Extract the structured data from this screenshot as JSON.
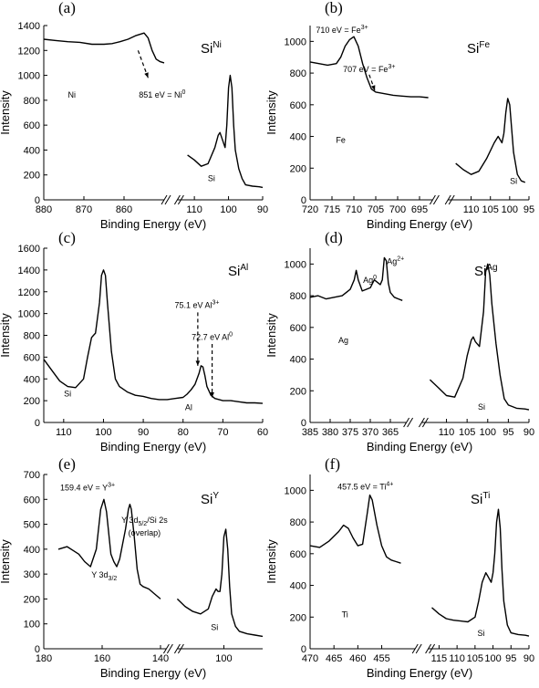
{
  "chart_data": [
    {
      "panel": "(a)",
      "title": "Si",
      "title_sup": "Ni",
      "type": "line",
      "xlabel": "Binding Energy (eV)",
      "ylabel": "Intensity",
      "ylim": [
        0,
        1400
      ],
      "yticks": [
        0,
        200,
        400,
        600,
        800,
        1000,
        1200,
        1400
      ],
      "segments": [
        {
          "xlim": [
            880,
            850
          ],
          "xticks": [
            880,
            870,
            860
          ],
          "x": [
            880,
            877,
            874,
            871,
            868,
            865,
            863,
            861,
            859,
            857,
            855,
            854,
            853,
            852,
            851,
            850
          ],
          "y": [
            1290,
            1280,
            1270,
            1265,
            1250,
            1250,
            1255,
            1270,
            1290,
            1320,
            1340,
            1300,
            1200,
            1130,
            1110,
            1100
          ]
        },
        {
          "xlim": [
            115,
            90
          ],
          "xticks": [
            110,
            100,
            90
          ],
          "x": [
            112,
            110,
            108,
            106,
            104,
            103,
            102.5,
            102,
            101,
            100.5,
            100,
            99.5,
            99,
            98.5,
            98,
            97,
            96,
            95,
            93,
            91,
            90
          ],
          "y": [
            360,
            320,
            270,
            290,
            420,
            520,
            540,
            500,
            420,
            600,
            900,
            1000,
            900,
            600,
            400,
            250,
            170,
            120,
            110,
            105,
            100
          ]
        }
      ],
      "element_labels": [
        {
          "text": "Ni",
          "x": 873,
          "y": 820
        },
        {
          "text": "Si",
          "x": 105,
          "y": 150
        }
      ],
      "annotations": [
        {
          "text": "851 eV = Ni",
          "sup": "0",
          "x": 850.5,
          "y": 820,
          "arrow_from": [
            856.5,
            1200
          ],
          "arrow_to": [
            854,
            980
          ]
        }
      ]
    },
    {
      "panel": "(b)",
      "title": "Si",
      "title_sup": "Fe",
      "type": "line",
      "xlabel": "Binding Energy (eV)",
      "ylabel": "Intensity",
      "ylim": [
        0,
        1100
      ],
      "yticks": [
        0,
        200,
        400,
        600,
        800,
        1000
      ],
      "segments": [
        {
          "xlim": [
            720,
            692
          ],
          "xticks": [
            720,
            715,
            710,
            705,
            700,
            695
          ],
          "x": [
            720,
            718,
            716,
            714,
            713,
            712,
            711,
            710,
            709,
            708,
            707,
            706,
            705,
            703,
            701,
            699,
            697,
            695,
            693
          ],
          "y": [
            870,
            860,
            850,
            860,
            900,
            970,
            1010,
            1030,
            970,
            860,
            770,
            700,
            680,
            670,
            660,
            655,
            650,
            650,
            645
          ]
        },
        {
          "xlim": [
            116,
            95
          ],
          "xticks": [
            110,
            105,
            100,
            95
          ],
          "x": [
            114,
            112,
            110,
            108,
            106,
            104,
            103,
            102.5,
            102,
            101.5,
            101,
            100.5,
            100,
            99.5,
            99,
            98,
            97,
            96
          ],
          "y": [
            230,
            190,
            160,
            180,
            260,
            360,
            400,
            380,
            360,
            420,
            550,
            640,
            600,
            450,
            300,
            160,
            120,
            110
          ]
        }
      ],
      "element_labels": [
        {
          "text": "Fe",
          "x": 713,
          "y": 360
        },
        {
          "text": "Si",
          "x": 99,
          "y": 100
        }
      ],
      "annotations": [
        {
          "text": "710 eV = Fe",
          "sup": "3+",
          "x": 712.7,
          "y": 1055
        },
        {
          "text": "707 eV = Fe",
          "sup": "3+",
          "x": 706.5,
          "y": 805,
          "arrow_from": [
            706.5,
            790
          ],
          "arrow_to": [
            705.2,
            690
          ]
        }
      ]
    },
    {
      "panel": "(c)",
      "title": "Si",
      "title_sup": "Al",
      "type": "line",
      "xlabel": "Binding Energy (eV)",
      "ylabel": "Intensity",
      "xlim": [
        115,
        60
      ],
      "xticks": [
        110,
        100,
        90,
        80,
        70,
        60
      ],
      "ylim": [
        0,
        1600
      ],
      "yticks": [
        0,
        200,
        400,
        600,
        800,
        1000,
        1200,
        1400,
        1600
      ],
      "segments": [
        {
          "xlim": [
            115,
            60
          ],
          "xticks": [
            110,
            100,
            90,
            80,
            70,
            60
          ],
          "x": [
            115,
            113,
            111,
            109,
            107,
            105,
            104,
            103,
            102.5,
            102,
            101,
            100.5,
            100,
            99.5,
            99,
            98,
            97,
            96,
            94,
            92,
            90,
            88,
            86,
            84,
            82,
            80,
            79,
            78,
            77,
            76,
            75.5,
            75,
            74.5,
            74,
            73,
            72,
            70,
            68,
            66,
            64,
            62,
            60
          ],
          "y": [
            580,
            480,
            380,
            330,
            320,
            400,
            600,
            780,
            800,
            820,
            1100,
            1350,
            1400,
            1350,
            1100,
            650,
            400,
            330,
            280,
            250,
            240,
            220,
            210,
            210,
            220,
            230,
            260,
            300,
            350,
            450,
            520,
            510,
            430,
            330,
            250,
            220,
            200,
            200,
            190,
            180,
            180,
            175
          ]
        }
      ],
      "element_labels": [
        {
          "text": "Si",
          "x": 109,
          "y": 240
        },
        {
          "text": "Al",
          "x": 78.6,
          "y": 115
        }
      ],
      "annotations": [
        {
          "text": "75.1 eV Al",
          "sup": "3+",
          "x": 76.5,
          "y": 1050,
          "arrow_from": [
            76.3,
            1010
          ],
          "arrow_to": [
            76.3,
            520
          ]
        },
        {
          "text": "72.7 eV Al",
          "sup": "0",
          "x": 72.7,
          "y": 760,
          "arrow_from": [
            72.7,
            720
          ],
          "arrow_to": [
            72.7,
            230
          ]
        }
      ]
    },
    {
      "panel": "(d)",
      "title": "Si",
      "title_sup": "Ag",
      "type": "line",
      "xlabel": "Binding Energy (eV)",
      "ylabel": "Intensity",
      "ylim": [
        0,
        1100
      ],
      "yticks": [
        0,
        200,
        400,
        600,
        800,
        1000
      ],
      "segments": [
        {
          "xlim": [
            385,
            361
          ],
          "xticks": [
            385,
            380,
            375,
            370,
            365
          ],
          "x": [
            385,
            383,
            381,
            379,
            377,
            375,
            374,
            373.5,
            373,
            372,
            371,
            370,
            369,
            368,
            367.5,
            367,
            366.5,
            366,
            365.5,
            365,
            364,
            363,
            362
          ],
          "y": [
            790,
            800,
            780,
            790,
            800,
            840,
            900,
            960,
            900,
            830,
            840,
            850,
            900,
            880,
            870,
            900,
            1040,
            1020,
            880,
            820,
            790,
            780,
            770
          ]
        },
        {
          "xlim": [
            116,
            90
          ],
          "xticks": [
            110,
            105,
            100,
            95,
            90
          ],
          "x": [
            114,
            112,
            110,
            108,
            106,
            105,
            104,
            103.5,
            103,
            102,
            101,
            100.5,
            100,
            99.5,
            99,
            98,
            97,
            96,
            95,
            93,
            91,
            90
          ],
          "y": [
            270,
            220,
            170,
            160,
            280,
            420,
            520,
            540,
            510,
            480,
            700,
            950,
            1000,
            930,
            750,
            500,
            300,
            150,
            110,
            90,
            85,
            80
          ]
        }
      ],
      "element_labels": [
        {
          "text": "Ag",
          "x": 376.7,
          "y": 500
        },
        {
          "text": "Si",
          "x": 101.5,
          "y": 80
        }
      ],
      "annotations": [
        {
          "text": "Ag",
          "sup": "0",
          "x": 370.1,
          "y": 880
        },
        {
          "text": "Ag",
          "sup": "2+",
          "x": 363.7,
          "y": 1000
        }
      ]
    },
    {
      "panel": "(e)",
      "title": "Si",
      "title_sup": "Y",
      "type": "line",
      "xlabel": "Binding Energy (eV)",
      "ylabel": "Intensity",
      "ylim": [
        0,
        700
      ],
      "yticks": [
        0,
        100,
        200,
        300,
        400,
        500,
        600,
        700
      ],
      "segments": [
        {
          "xlim": [
            180,
            138
          ],
          "xticks": [
            180,
            160,
            140
          ],
          "x": [
            175,
            172,
            170,
            168,
            166,
            164,
            162,
            160.5,
            159.4,
            158.5,
            157,
            156,
            155,
            154,
            153,
            152,
            151,
            150.5,
            150,
            149,
            148,
            147,
            146,
            144,
            142,
            140
          ],
          "y": [
            400,
            410,
            395,
            380,
            350,
            330,
            400,
            560,
            600,
            550,
            380,
            350,
            330,
            360,
            420,
            480,
            560,
            580,
            560,
            450,
            320,
            260,
            250,
            240,
            220,
            200
          ]
        },
        {
          "xlim": [
            112,
            90
          ],
          "xticks": [
            100
          ],
          "x": [
            112,
            110,
            108,
            106,
            104,
            103,
            102,
            101.5,
            101,
            100.5,
            100,
            99.5,
            99,
            98.5,
            98,
            97,
            96,
            94,
            92,
            90
          ],
          "y": [
            200,
            170,
            150,
            140,
            160,
            210,
            240,
            230,
            230,
            300,
            450,
            480,
            400,
            250,
            140,
            90,
            70,
            60,
            55,
            50
          ]
        }
      ],
      "element_labels": [
        {
          "text": "Si",
          "x": 102.4,
          "y": 75
        }
      ],
      "annotations": [
        {
          "text": "159.4 eV = Y",
          "sup": "3+",
          "x": 165,
          "y": 635
        },
        {
          "text": "Y 3d",
          "sub": "3/2",
          "x": 159.3,
          "y": 285
        },
        {
          "text": "Y 3d",
          "sub": "5/2",
          "after": "/Si 2s",
          "x": 145.5,
          "y": 505
        },
        {
          "text": "(overlap)",
          "x": 145.5,
          "y": 455
        }
      ]
    },
    {
      "panel": "(f)",
      "title": "Si",
      "title_sup": "Ti",
      "type": "line",
      "xlabel": "Binding Energy (eV)",
      "ylabel": "Intensity",
      "ylim": [
        0,
        1100
      ],
      "yticks": [
        0,
        200,
        400,
        600,
        800,
        1000
      ],
      "segments": [
        {
          "xlim": [
            470,
            448
          ],
          "xticks": [
            470,
            465,
            460,
            455
          ],
          "x": [
            470,
            468,
            466,
            464,
            463,
            462,
            461,
            460,
            459,
            458,
            457.5,
            457,
            456,
            455,
            454,
            453,
            452,
            451
          ],
          "y": [
            650,
            640,
            680,
            740,
            780,
            760,
            700,
            650,
            660,
            860,
            970,
            940,
            780,
            650,
            580,
            560,
            550,
            540
          ]
        },
        {
          "xlim": [
            118,
            90
          ],
          "xticks": [
            115,
            110,
            105,
            100,
            95,
            90
          ],
          "x": [
            117,
            115,
            113,
            111,
            109,
            107,
            105,
            104,
            103,
            102,
            101.5,
            101,
            100.5,
            100,
            99.5,
            99,
            98.5,
            98,
            97.5,
            97,
            96,
            95,
            93,
            91,
            90
          ],
          "y": [
            260,
            220,
            190,
            180,
            175,
            170,
            200,
            300,
            420,
            480,
            460,
            440,
            420,
            480,
            600,
            800,
            880,
            760,
            500,
            300,
            150,
            100,
            90,
            85,
            80
          ]
        }
      ],
      "element_labels": [
        {
          "text": "Ti",
          "x": 462.7,
          "y": 200
        },
        {
          "text": "Si",
          "x": 103.3,
          "y": 80
        }
      ],
      "annotations": [
        {
          "text": "457.5 eV = Ti",
          "sup": "4+",
          "x": 458.4,
          "y": 1005
        }
      ]
    }
  ]
}
